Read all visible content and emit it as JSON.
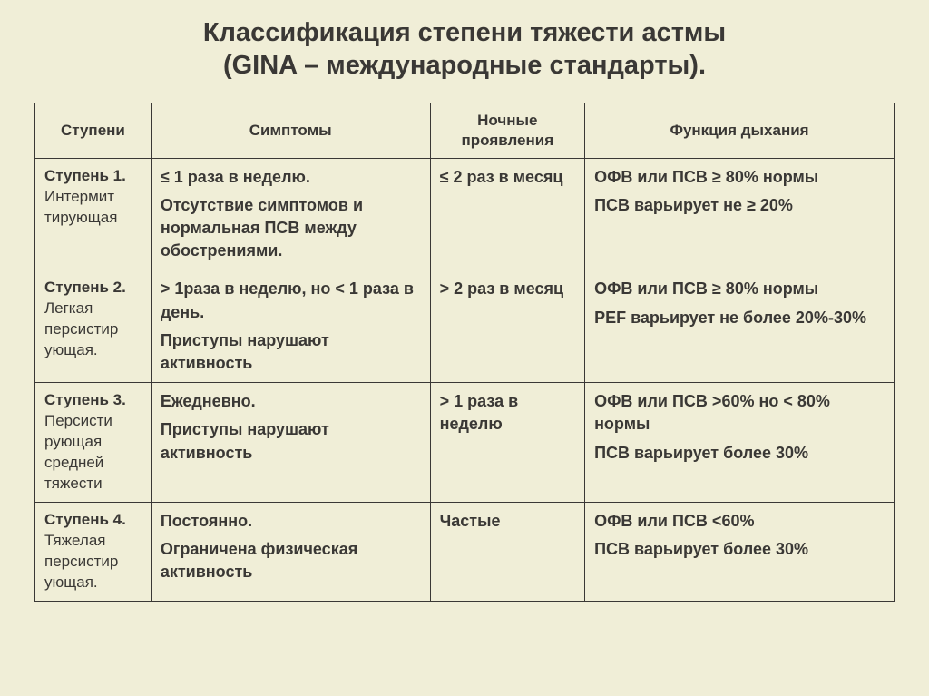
{
  "title_line1": "Классификация степени тяжести астмы",
  "title_line2": "(GINA – международные стандарты).",
  "colors": {
    "background": "#f0eed7",
    "border": "#3a3835",
    "text": "#3a3835"
  },
  "fonts": {
    "title_size": 29,
    "header_size": 17,
    "step_size": 17,
    "cell_size": 18
  },
  "headers": {
    "step": "Ступени",
    "symptoms": "Симптомы",
    "night": "Ночные проявления",
    "func": "Функция дыхания"
  },
  "rows": [
    {
      "step_num": "Ступень 1.",
      "step_name": "Интермит тирующая",
      "symptoms_1": "≤ 1 раза в неделю.",
      "symptoms_2": "Отсутствие симптомов и нормальная ПСВ между обострениями.",
      "night": "≤ 2 раз в месяц",
      "func_1": "ОФВ или ПСВ ≥ 80% нормы",
      "func_2": "ПСВ варьирует не ≥ 20%"
    },
    {
      "step_num": "Ступень 2.",
      "step_name": "Легкая персистир ующая.",
      "symptoms_1": "> 1раза  в неделю, но < 1 раза в день.",
      "symptoms_2": "Приступы нарушают активность",
      "night": ">  2 раз в месяц",
      "func_1": "ОФВ или ПСВ ≥ 80% нормы",
      "func_2": "PEF варьирует не более 20%-30%"
    },
    {
      "step_num": "Ступень 3.",
      "step_name": "Персисти рующая средней тяжести",
      "symptoms_1": "Ежедневно.",
      "symptoms_2": "Приступы нарушают активность",
      "night": "> 1 раза в неделю",
      "func_1": "ОФВ или ПСВ >60% но < 80% нормы",
      "func_2": "ПСВ варьирует более 30%"
    },
    {
      "step_num": "Ступень 4.",
      "step_name": "Тяжелая персистир ующая.",
      "symptoms_1": "Постоянно.",
      "symptoms_2": "Ограничена  физическая активность",
      "night": "Частые",
      "func_1": "ОФВ или ПСВ <60%",
      "func_2": "ПСВ варьирует более 30%"
    }
  ]
}
